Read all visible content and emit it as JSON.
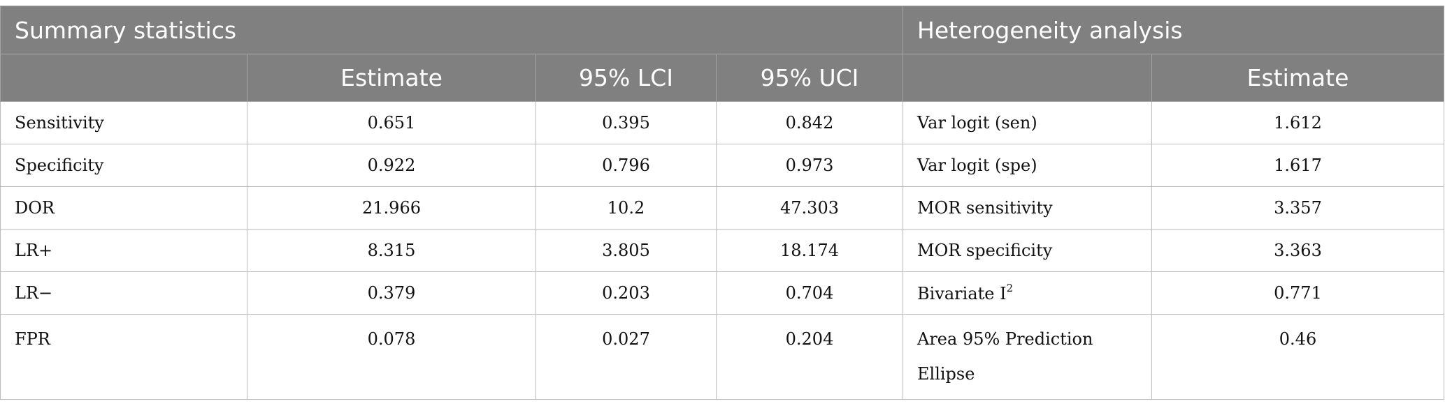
{
  "headers": {
    "summary": "Summary statistics",
    "heterogeneity": "Heterogeneity analysis",
    "estimate": "Estimate",
    "lci": "95% LCI",
    "uci": "95% UCI",
    "het_blank": "",
    "het_estimate": "Estimate"
  },
  "rows": [
    {
      "stat": "Sensitivity",
      "est": "0.651",
      "lci": "0.395",
      "uci": "0.842",
      "het_label": "Var logit (sen)",
      "het_est": "1.612"
    },
    {
      "stat": "Specificity",
      "est": "0.922",
      "lci": "0.796",
      "uci": "0.973",
      "het_label": "Var logit (spe)",
      "het_est": "1.617"
    },
    {
      "stat": "DOR",
      "est": "21.966",
      "lci": "10.2",
      "uci": "47.303",
      "het_label": "MOR sensitivity",
      "het_est": "3.357"
    },
    {
      "stat": "LR+",
      "est": "8.315",
      "lci": "3.805",
      "uci": "18.174",
      "het_label": "MOR specificity",
      "het_est": "3.363"
    },
    {
      "stat": "LR−",
      "est": "0.379",
      "lci": "0.203",
      "uci": "0.704",
      "het_label": "Bivariate I",
      "het_label_sup": "2",
      "het_est": "0.771"
    },
    {
      "stat": "FPR",
      "est": "0.078",
      "lci": "0.027",
      "uci": "0.204",
      "het_label": "Area 95% Prediction Ellipse",
      "het_est": "0.46"
    }
  ]
}
